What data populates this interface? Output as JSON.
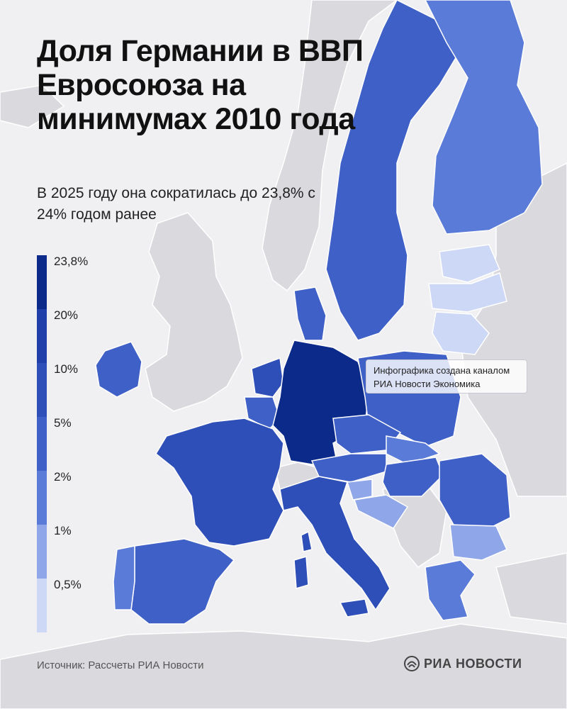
{
  "title": "Доля Германии в ВВП Евросоюза на минимумах 2010 года",
  "subtitle": "В 2025 году она сократилась до 23,8% с 24% годом ранее",
  "legend": {
    "labels": [
      "23,8%",
      "20%",
      "10%",
      "5%",
      "2%",
      "1%",
      "0,5%"
    ],
    "colors": [
      "#0b2a8a",
      "#203fa8",
      "#2f4fb8",
      "#3f60c6",
      "#5a7bd7",
      "#8fa6e8",
      "#cdd8f6"
    ]
  },
  "note": {
    "line1": "Инфографика создана каналом",
    "line2": "РИА Новости Экономика"
  },
  "source": "Источник: Рассчеты РИА Новости",
  "logo": "РИА НОВОСТИ",
  "colors": {
    "background": "#f0f0f2",
    "non_eu_land": "#dadade",
    "borders": "#ffffff"
  }
}
